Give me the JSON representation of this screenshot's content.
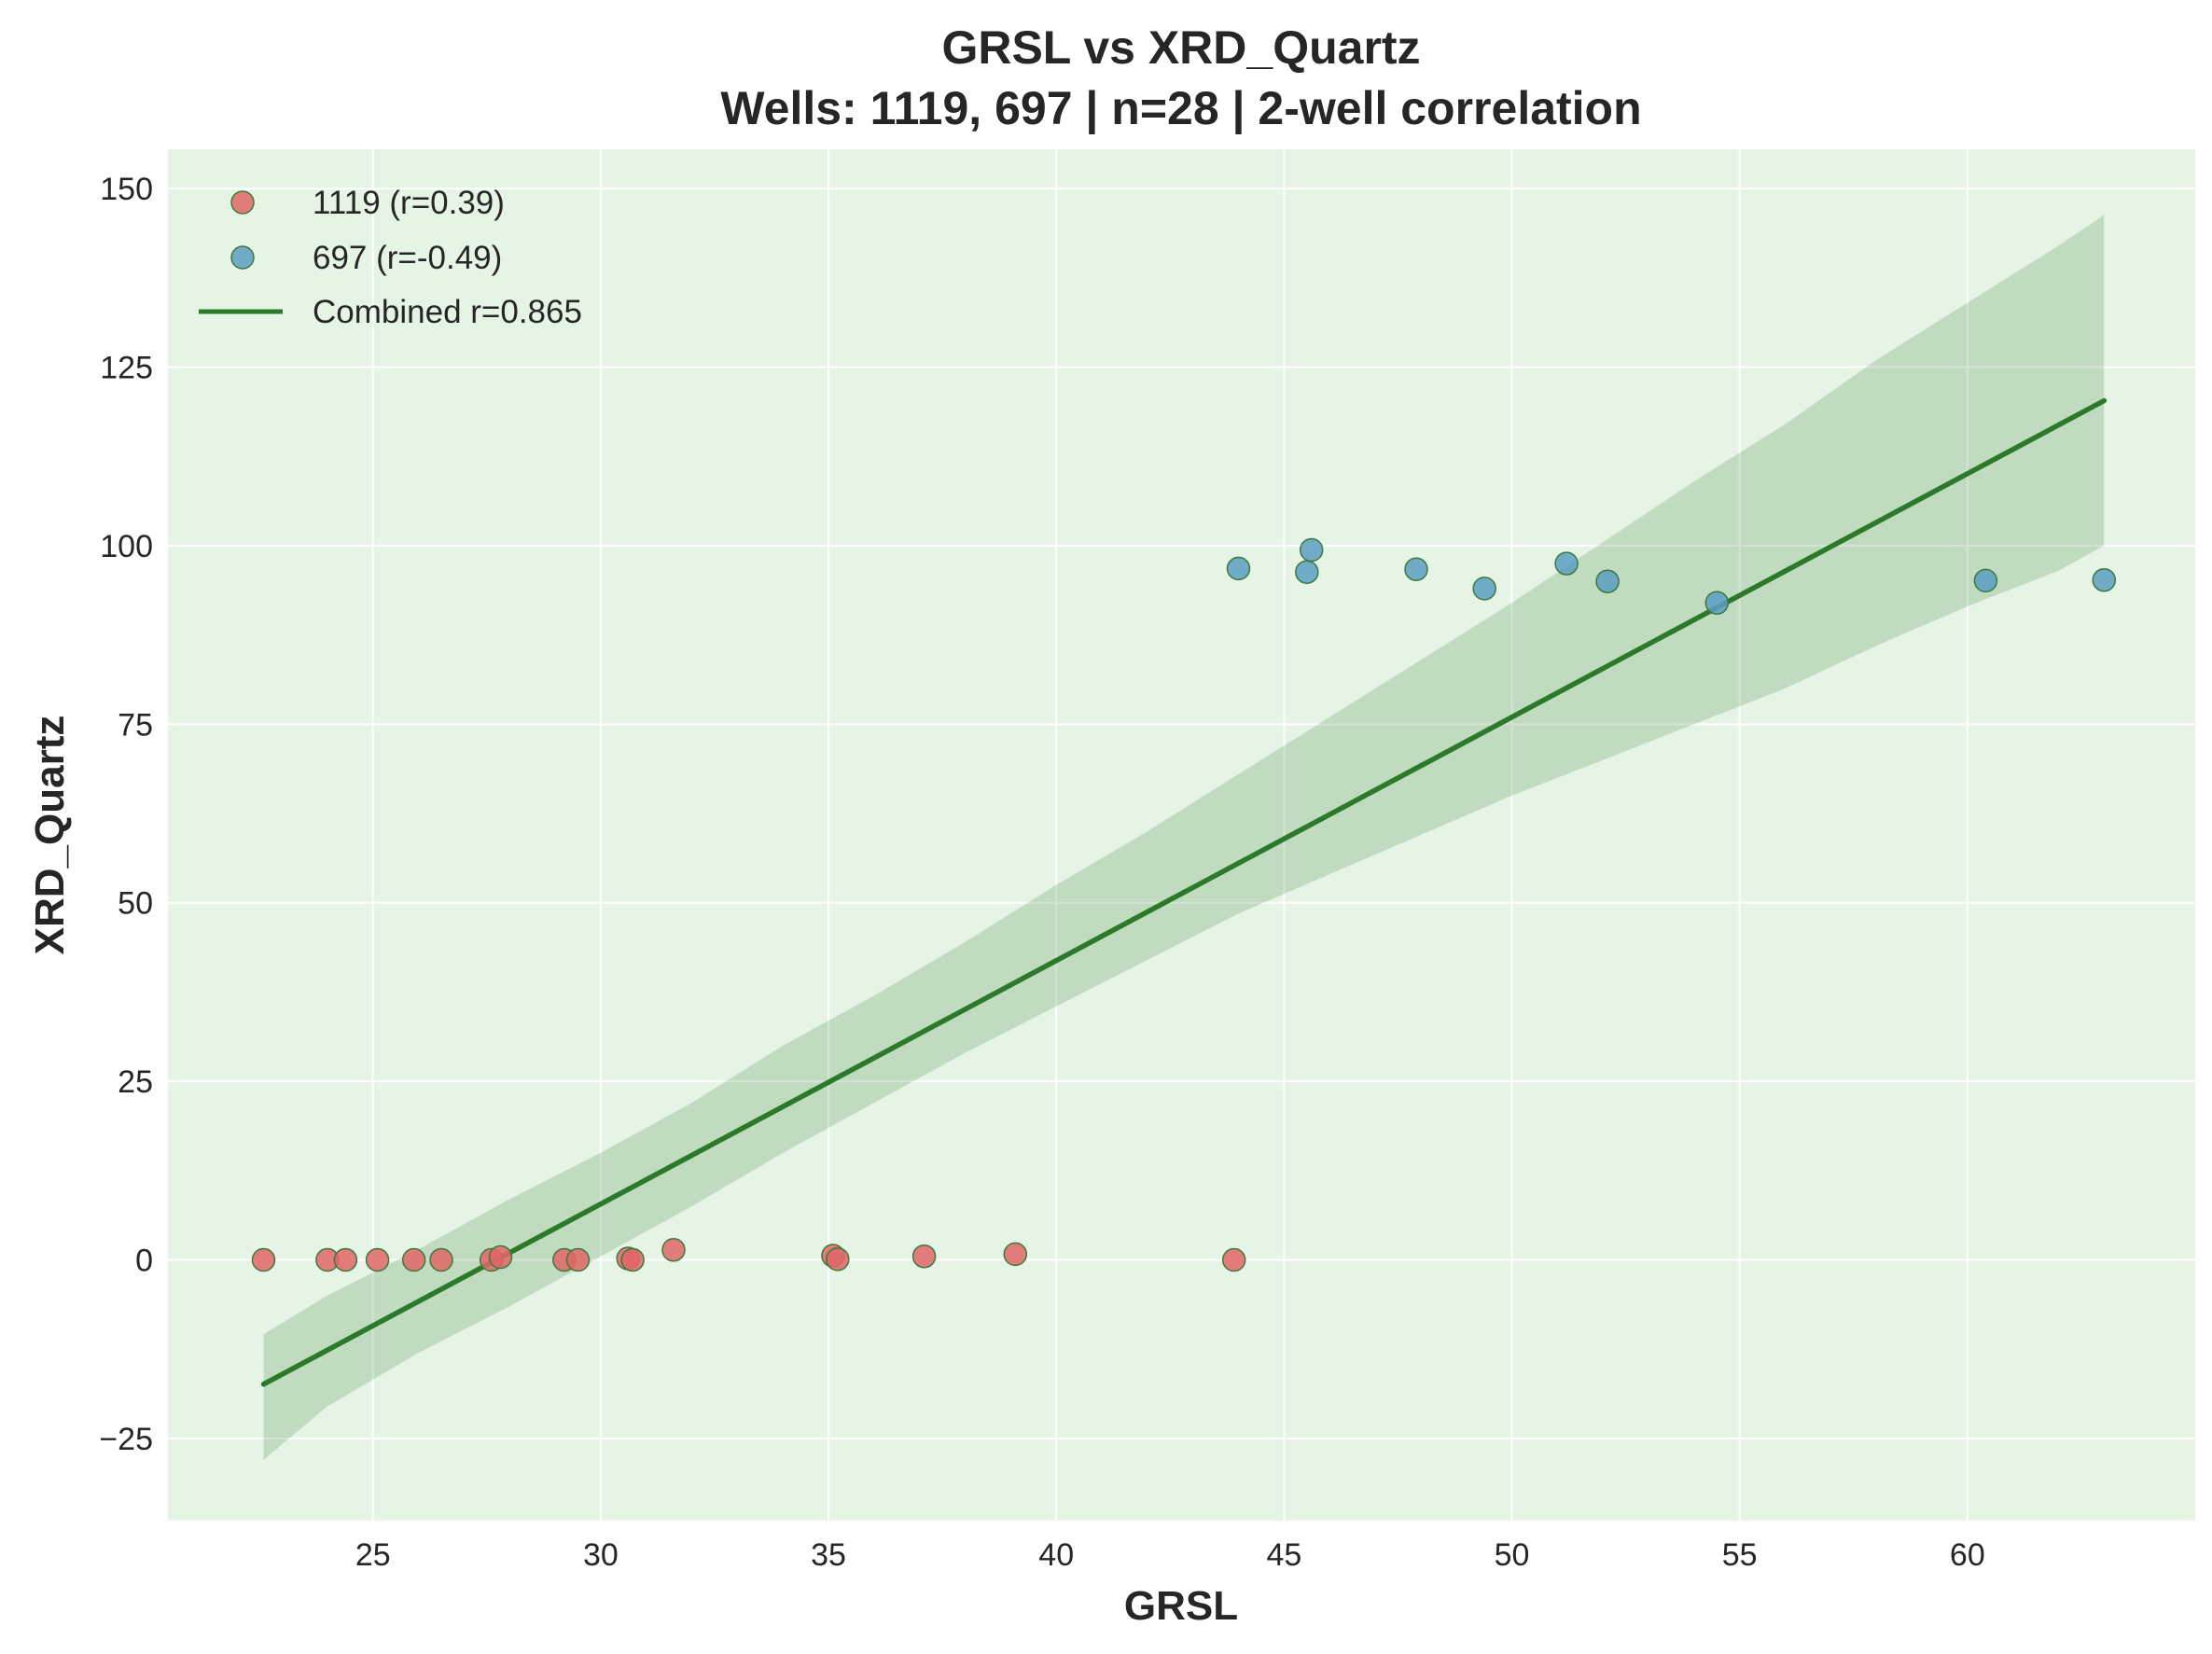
{
  "chart_data": {
    "type": "scatter",
    "title": "GRSL vs XRD_Quartz",
    "subtitle": "Wells: 1119, 697 | n=28 | 2-well correlation",
    "xlabel": "GRSL",
    "ylabel": "XRD_Quartz",
    "xlim": [
      20.5,
      65.0
    ],
    "ylim": [
      -36.5,
      155.5
    ],
    "x_ticks": [
      25,
      30,
      35,
      40,
      45,
      50,
      55,
      60
    ],
    "y_ticks": [
      -25,
      0,
      25,
      50,
      75,
      100,
      125,
      150
    ],
    "y_tick_labels": [
      "−25",
      "0",
      "25",
      "50",
      "75",
      "100",
      "125",
      "150"
    ],
    "grid": true,
    "background_color": "#e6f4e6",
    "legend_position": "top-left",
    "series": [
      {
        "name": "1119 (r=0.39)",
        "color": "#e06666",
        "edge_color": "#3c7a3c",
        "points": [
          [
            22.6,
            0.0
          ],
          [
            24.0,
            0.0
          ],
          [
            24.4,
            0.0
          ],
          [
            25.1,
            0.0
          ],
          [
            25.9,
            0.0
          ],
          [
            26.5,
            0.0
          ],
          [
            27.6,
            0.0
          ],
          [
            27.8,
            0.4
          ],
          [
            29.2,
            0.0
          ],
          [
            29.5,
            0.0
          ],
          [
            30.6,
            0.2
          ],
          [
            30.7,
            0.0
          ],
          [
            31.6,
            1.4
          ],
          [
            35.1,
            0.6
          ],
          [
            35.2,
            0.1
          ],
          [
            37.1,
            0.5
          ],
          [
            39.1,
            0.8
          ],
          [
            43.9,
            0.0
          ]
        ]
      },
      {
        "name": "697 (r=-0.49)",
        "color": "#5b9ec2",
        "edge_color": "#3c7a3c",
        "points": [
          [
            44.0,
            96.8
          ],
          [
            45.5,
            96.3
          ],
          [
            45.6,
            99.4
          ],
          [
            47.9,
            96.7
          ],
          [
            49.4,
            94.0
          ],
          [
            51.2,
            97.5
          ],
          [
            52.1,
            95.0
          ],
          [
            54.5,
            92.0
          ],
          [
            60.4,
            95.1
          ],
          [
            63.0,
            95.2
          ]
        ]
      }
    ],
    "fit_line": {
      "name": "Combined r=0.865",
      "color": "#2a7a2a",
      "x": [
        22.6,
        63.0
      ],
      "y": [
        -17.4,
        120.3
      ]
    },
    "confidence_band": {
      "color": "#2a7a2a",
      "x": [
        22.6,
        24.0,
        26.0,
        28.0,
        30.0,
        32.0,
        34.0,
        36.0,
        38.0,
        40.0,
        42.0,
        44.0,
        46.0,
        48.0,
        50.0,
        52.0,
        54.0,
        56.0,
        58.0,
        60.0,
        62.0,
        63.0
      ],
      "upper": [
        -10.4,
        -5.0,
        1.5,
        8.5,
        15.0,
        22.0,
        30.0,
        37.0,
        44.5,
        52.5,
        60.0,
        68.0,
        76.0,
        84.0,
        92.0,
        100.5,
        109.0,
        117.0,
        126.0,
        134.0,
        142.0,
        146.3
      ],
      "lower": [
        -28.0,
        -20.5,
        -13.0,
        -6.5,
        0.5,
        7.5,
        15.0,
        22.0,
        29.0,
        35.5,
        42.0,
        48.5,
        54.0,
        59.5,
        65.0,
        70.0,
        75.0,
        80.0,
        86.0,
        91.5,
        96.5,
        100.0
      ]
    }
  }
}
